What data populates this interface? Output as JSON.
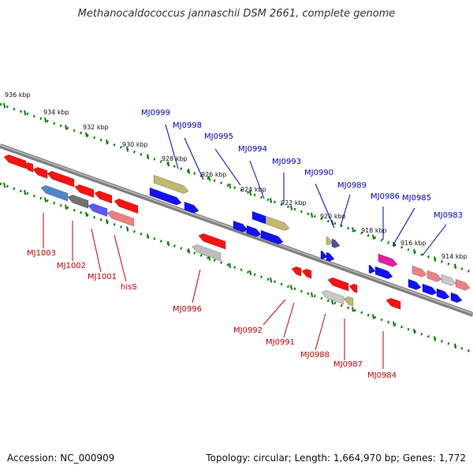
{
  "title": "Methanocaldococcus jannaschii DSM 2661, complete genome",
  "footer": {
    "accession": "Accession: NC_000909",
    "summary": "Topology: circular; Length: 1,664,970 bp; Genes: 1,772"
  },
  "scale_labels": [
    "936 kbp",
    "934 kbp",
    "932 kbp",
    "930 kbp",
    "928 kbp",
    "926 kbp",
    "924 kbp",
    "922 kbp",
    "920 kbp",
    "918 kbp",
    "916 kbp",
    "914 kbp"
  ],
  "labels_top": [
    "MJ0999",
    "MJ0998",
    "MJ0995",
    "MJ0994",
    "MJ0993",
    "MJ0990",
    "MJ0989",
    "MJ0986",
    "MJ0985",
    "MJ0983"
  ],
  "labels_bottom": [
    "MJ1003",
    "MJ1002",
    "MJ1001",
    "hisS",
    "MJ0996",
    "MJ0992",
    "MJ0991",
    "MJ0988",
    "MJ0987",
    "MJ0984"
  ],
  "colors": {
    "forward_strand": "#0000ff",
    "reverse_strand": "#ff0000",
    "label_forward": "#0000cc",
    "label_reverse": "#cc0000",
    "backbone": "#808080",
    "scale_dots": "#008000"
  }
}
